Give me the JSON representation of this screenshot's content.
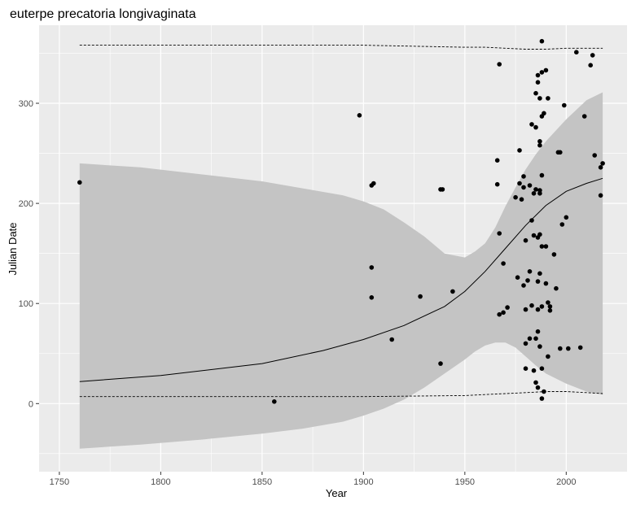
{
  "chart_data": {
    "type": "scatter",
    "title": "euterpe precatoria longivaginata",
    "xlabel": "Year",
    "ylabel": "Julian Date",
    "xlim": [
      1740,
      2030
    ],
    "ylim": [
      -68,
      378
    ],
    "x_ticks": [
      1750,
      1800,
      1850,
      1900,
      1950,
      2000
    ],
    "y_ticks": [
      0,
      100,
      200,
      300
    ],
    "grid": true,
    "legend": "none",
    "colors": {
      "panel": "#ebebeb",
      "grid": "#ffffff",
      "band": "#c4c4c4",
      "points": "#000000",
      "line": "#000000"
    },
    "points": [
      {
        "x": 1760,
        "y": 221
      },
      {
        "x": 1856,
        "y": 2
      },
      {
        "x": 1898,
        "y": 288
      },
      {
        "x": 1904,
        "y": 218
      },
      {
        "x": 1905,
        "y": 220
      },
      {
        "x": 1904,
        "y": 136
      },
      {
        "x": 1904,
        "y": 106
      },
      {
        "x": 1914,
        "y": 64
      },
      {
        "x": 1928,
        "y": 107
      },
      {
        "x": 1938,
        "y": 214
      },
      {
        "x": 1939,
        "y": 214
      },
      {
        "x": 1938,
        "y": 40
      },
      {
        "x": 1944,
        "y": 112
      },
      {
        "x": 1966,
        "y": 243
      },
      {
        "x": 1966,
        "y": 219
      },
      {
        "x": 1967,
        "y": 339
      },
      {
        "x": 1967,
        "y": 170
      },
      {
        "x": 1967,
        "y": 89
      },
      {
        "x": 1969,
        "y": 140
      },
      {
        "x": 1969,
        "y": 91
      },
      {
        "x": 1971,
        "y": 96
      },
      {
        "x": 1975,
        "y": 206
      },
      {
        "x": 1976,
        "y": 126
      },
      {
        "x": 1977,
        "y": 253
      },
      {
        "x": 1977,
        "y": 220
      },
      {
        "x": 1978,
        "y": 204
      },
      {
        "x": 1979,
        "y": 227
      },
      {
        "x": 1979,
        "y": 216
      },
      {
        "x": 1979,
        "y": 118
      },
      {
        "x": 1980,
        "y": 163
      },
      {
        "x": 1980,
        "y": 94
      },
      {
        "x": 1980,
        "y": 60
      },
      {
        "x": 1980,
        "y": 35
      },
      {
        "x": 1981,
        "y": 123
      },
      {
        "x": 1982,
        "y": 218
      },
      {
        "x": 1982,
        "y": 132
      },
      {
        "x": 1982,
        "y": 65
      },
      {
        "x": 1983,
        "y": 279
      },
      {
        "x": 1983,
        "y": 183
      },
      {
        "x": 1983,
        "y": 98
      },
      {
        "x": 1984,
        "y": 210
      },
      {
        "x": 1984,
        "y": 168
      },
      {
        "x": 1984,
        "y": 33
      },
      {
        "x": 1985,
        "y": 310
      },
      {
        "x": 1985,
        "y": 276
      },
      {
        "x": 1985,
        "y": 214
      },
      {
        "x": 1985,
        "y": 65
      },
      {
        "x": 1985,
        "y": 21
      },
      {
        "x": 1986,
        "y": 328
      },
      {
        "x": 1986,
        "y": 321
      },
      {
        "x": 1986,
        "y": 166
      },
      {
        "x": 1986,
        "y": 122
      },
      {
        "x": 1986,
        "y": 94
      },
      {
        "x": 1986,
        "y": 72
      },
      {
        "x": 1986,
        "y": 16
      },
      {
        "x": 1987,
        "y": 305
      },
      {
        "x": 1987,
        "y": 262
      },
      {
        "x": 1987,
        "y": 258
      },
      {
        "x": 1987,
        "y": 213
      },
      {
        "x": 1987,
        "y": 210
      },
      {
        "x": 1987,
        "y": 169
      },
      {
        "x": 1987,
        "y": 130
      },
      {
        "x": 1987,
        "y": 57
      },
      {
        "x": 1988,
        "y": 362
      },
      {
        "x": 1988,
        "y": 331
      },
      {
        "x": 1988,
        "y": 287
      },
      {
        "x": 1988,
        "y": 228
      },
      {
        "x": 1988,
        "y": 157
      },
      {
        "x": 1988,
        "y": 97
      },
      {
        "x": 1988,
        "y": 35
      },
      {
        "x": 1988,
        "y": 5
      },
      {
        "x": 1989,
        "y": 290
      },
      {
        "x": 1989,
        "y": 12
      },
      {
        "x": 1990,
        "y": 333
      },
      {
        "x": 1990,
        "y": 157
      },
      {
        "x": 1990,
        "y": 120
      },
      {
        "x": 1991,
        "y": 305
      },
      {
        "x": 1991,
        "y": 101
      },
      {
        "x": 1991,
        "y": 47
      },
      {
        "x": 1992,
        "y": 97
      },
      {
        "x": 1992,
        "y": 93
      },
      {
        "x": 1994,
        "y": 149
      },
      {
        "x": 1995,
        "y": 115
      },
      {
        "x": 1996,
        "y": 251
      },
      {
        "x": 1997,
        "y": 251
      },
      {
        "x": 1997,
        "y": 55
      },
      {
        "x": 1998,
        "y": 179
      },
      {
        "x": 1999,
        "y": 298
      },
      {
        "x": 2000,
        "y": 186
      },
      {
        "x": 2001,
        "y": 55
      },
      {
        "x": 2005,
        "y": 351
      },
      {
        "x": 2007,
        "y": 56
      },
      {
        "x": 2009,
        "y": 287
      },
      {
        "x": 2012,
        "y": 338
      },
      {
        "x": 2013,
        "y": 348
      },
      {
        "x": 2014,
        "y": 248
      },
      {
        "x": 2017,
        "y": 236
      },
      {
        "x": 2017,
        "y": 208
      },
      {
        "x": 2018,
        "y": 240
      }
    ],
    "fit_line": {
      "x": [
        1760,
        1800,
        1850,
        1880,
        1900,
        1920,
        1940,
        1950,
        1960,
        1970,
        1980,
        1990,
        2000,
        2010,
        2018
      ],
      "y": [
        22,
        28,
        40,
        53,
        64,
        78,
        97,
        112,
        132,
        155,
        178,
        198,
        212,
        220,
        225
      ]
    },
    "band": {
      "x": [
        1760,
        1790,
        1820,
        1850,
        1870,
        1890,
        1900,
        1910,
        1920,
        1930,
        1940,
        1950,
        1955,
        1960,
        1965,
        1970,
        1975,
        1980,
        1985,
        1990,
        2000,
        2010,
        2018
      ],
      "upper": [
        240,
        236,
        229,
        222,
        215,
        208,
        202,
        194,
        181,
        167,
        150,
        146,
        152,
        160,
        176,
        197,
        216,
        234,
        249,
        262,
        284,
        303,
        311
      ],
      "lower": [
        -45,
        -41,
        -36,
        -30,
        -25,
        -18,
        -12,
        -5,
        4,
        16,
        30,
        44,
        52,
        58,
        61,
        61,
        56,
        47,
        38,
        30,
        20,
        12,
        9
      ]
    },
    "dashed_upper": {
      "x": [
        1760,
        1800,
        1850,
        1900,
        1950,
        1960,
        1970,
        1980,
        1990,
        2000,
        2010,
        2018
      ],
      "y": [
        358,
        358,
        358,
        358,
        356,
        356,
        355,
        354,
        354,
        355,
        355,
        355
      ]
    },
    "dashed_lower": {
      "x": [
        1760,
        1800,
        1850,
        1900,
        1950,
        1960,
        1970,
        1980,
        1990,
        2000,
        2010,
        2018
      ],
      "y": [
        7,
        7,
        7,
        7,
        8,
        9,
        10,
        11,
        12,
        12,
        11,
        10
      ]
    }
  }
}
